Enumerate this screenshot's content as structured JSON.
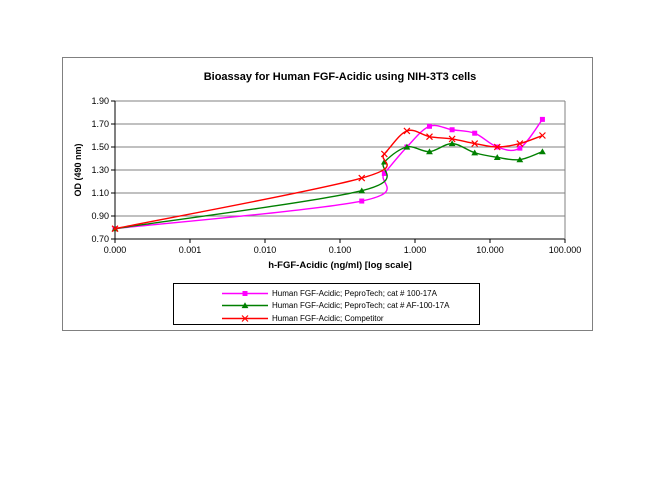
{
  "chart": {
    "background": "#ffffff",
    "grid_color": "#808080",
    "axis_color": "#000000",
    "border_color": "#808080"
  },
  "chart_data": {
    "type": "line",
    "title": "Bioassay for Human FGF-Acidic using NIH-3T3 cells",
    "xlabel": "h-FGF-Acidic (ng/ml) [log scale]",
    "ylabel": "OD (490 nm)",
    "x_scale": "log",
    "grid": true,
    "legend_position": "bottom",
    "ylim": [
      0.7,
      1.9
    ],
    "y_tick_labels": [
      "0.70",
      "0.90",
      "1.10",
      "1.30",
      "1.50",
      "1.70",
      "1.90"
    ],
    "x_tick_labels": [
      "0.000",
      "0.001",
      "0.010",
      "0.100",
      "1.000",
      "10.000",
      "100.000"
    ],
    "x": [
      0,
      0.195,
      0.39,
      0.78,
      1.56,
      3.125,
      6.25,
      12.5,
      25,
      50
    ],
    "series": [
      {
        "name": "Human FGF-Acidic; PeproTech; cat # 100-17A",
        "color": "#FF00FF",
        "marker": "square",
        "values": [
          0.79,
          1.03,
          1.27,
          1.5,
          1.68,
          1.65,
          1.62,
          1.5,
          1.49,
          1.74
        ]
      },
      {
        "name": "Human FGF-Acidic; PeproTech; cat # AF-100-17A",
        "color": "#008000",
        "marker": "triangle",
        "values": [
          0.79,
          1.12,
          1.37,
          1.5,
          1.46,
          1.53,
          1.45,
          1.41,
          1.39,
          1.46
        ]
      },
      {
        "name": "Human FGF-Acidic; Competitor",
        "color": "#FF0000",
        "marker": "x",
        "values": [
          0.79,
          1.23,
          1.44,
          1.64,
          1.59,
          1.57,
          1.53,
          1.5,
          1.53,
          1.6
        ]
      }
    ]
  }
}
